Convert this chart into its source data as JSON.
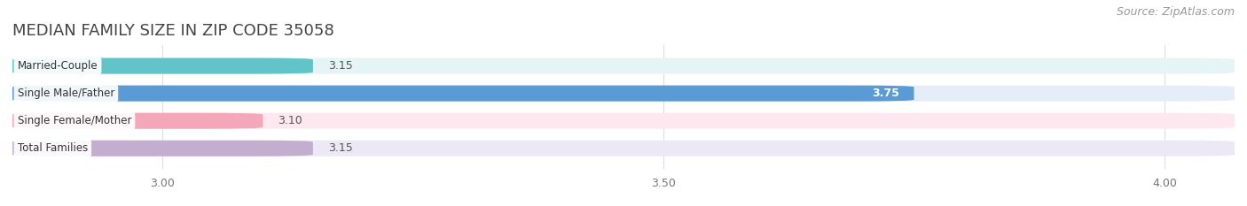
{
  "title": "MEDIAN FAMILY SIZE IN ZIP CODE 35058",
  "source": "Source: ZipAtlas.com",
  "categories": [
    "Married-Couple",
    "Single Male/Father",
    "Single Female/Mother",
    "Total Families"
  ],
  "values": [
    3.15,
    3.75,
    3.1,
    3.15
  ],
  "bar_colors": [
    "#62C4C8",
    "#5B9BD5",
    "#F4A7B9",
    "#C4AECF"
  ],
  "bar_bg_colors": [
    "#E5F4F5",
    "#E5EEF8",
    "#FCE8EE",
    "#EDE8F5"
  ],
  "label_colors": [
    "#333333",
    "#333333",
    "#333333",
    "#333333"
  ],
  "value_label_white": [
    false,
    true,
    false,
    false
  ],
  "xlim": [
    2.85,
    4.07
  ],
  "xticks": [
    3.0,
    3.5,
    4.0
  ],
  "title_fontsize": 13,
  "source_fontsize": 9,
  "bar_height": 0.58,
  "background_color": "#ffffff",
  "grid_color": "#dddddd"
}
